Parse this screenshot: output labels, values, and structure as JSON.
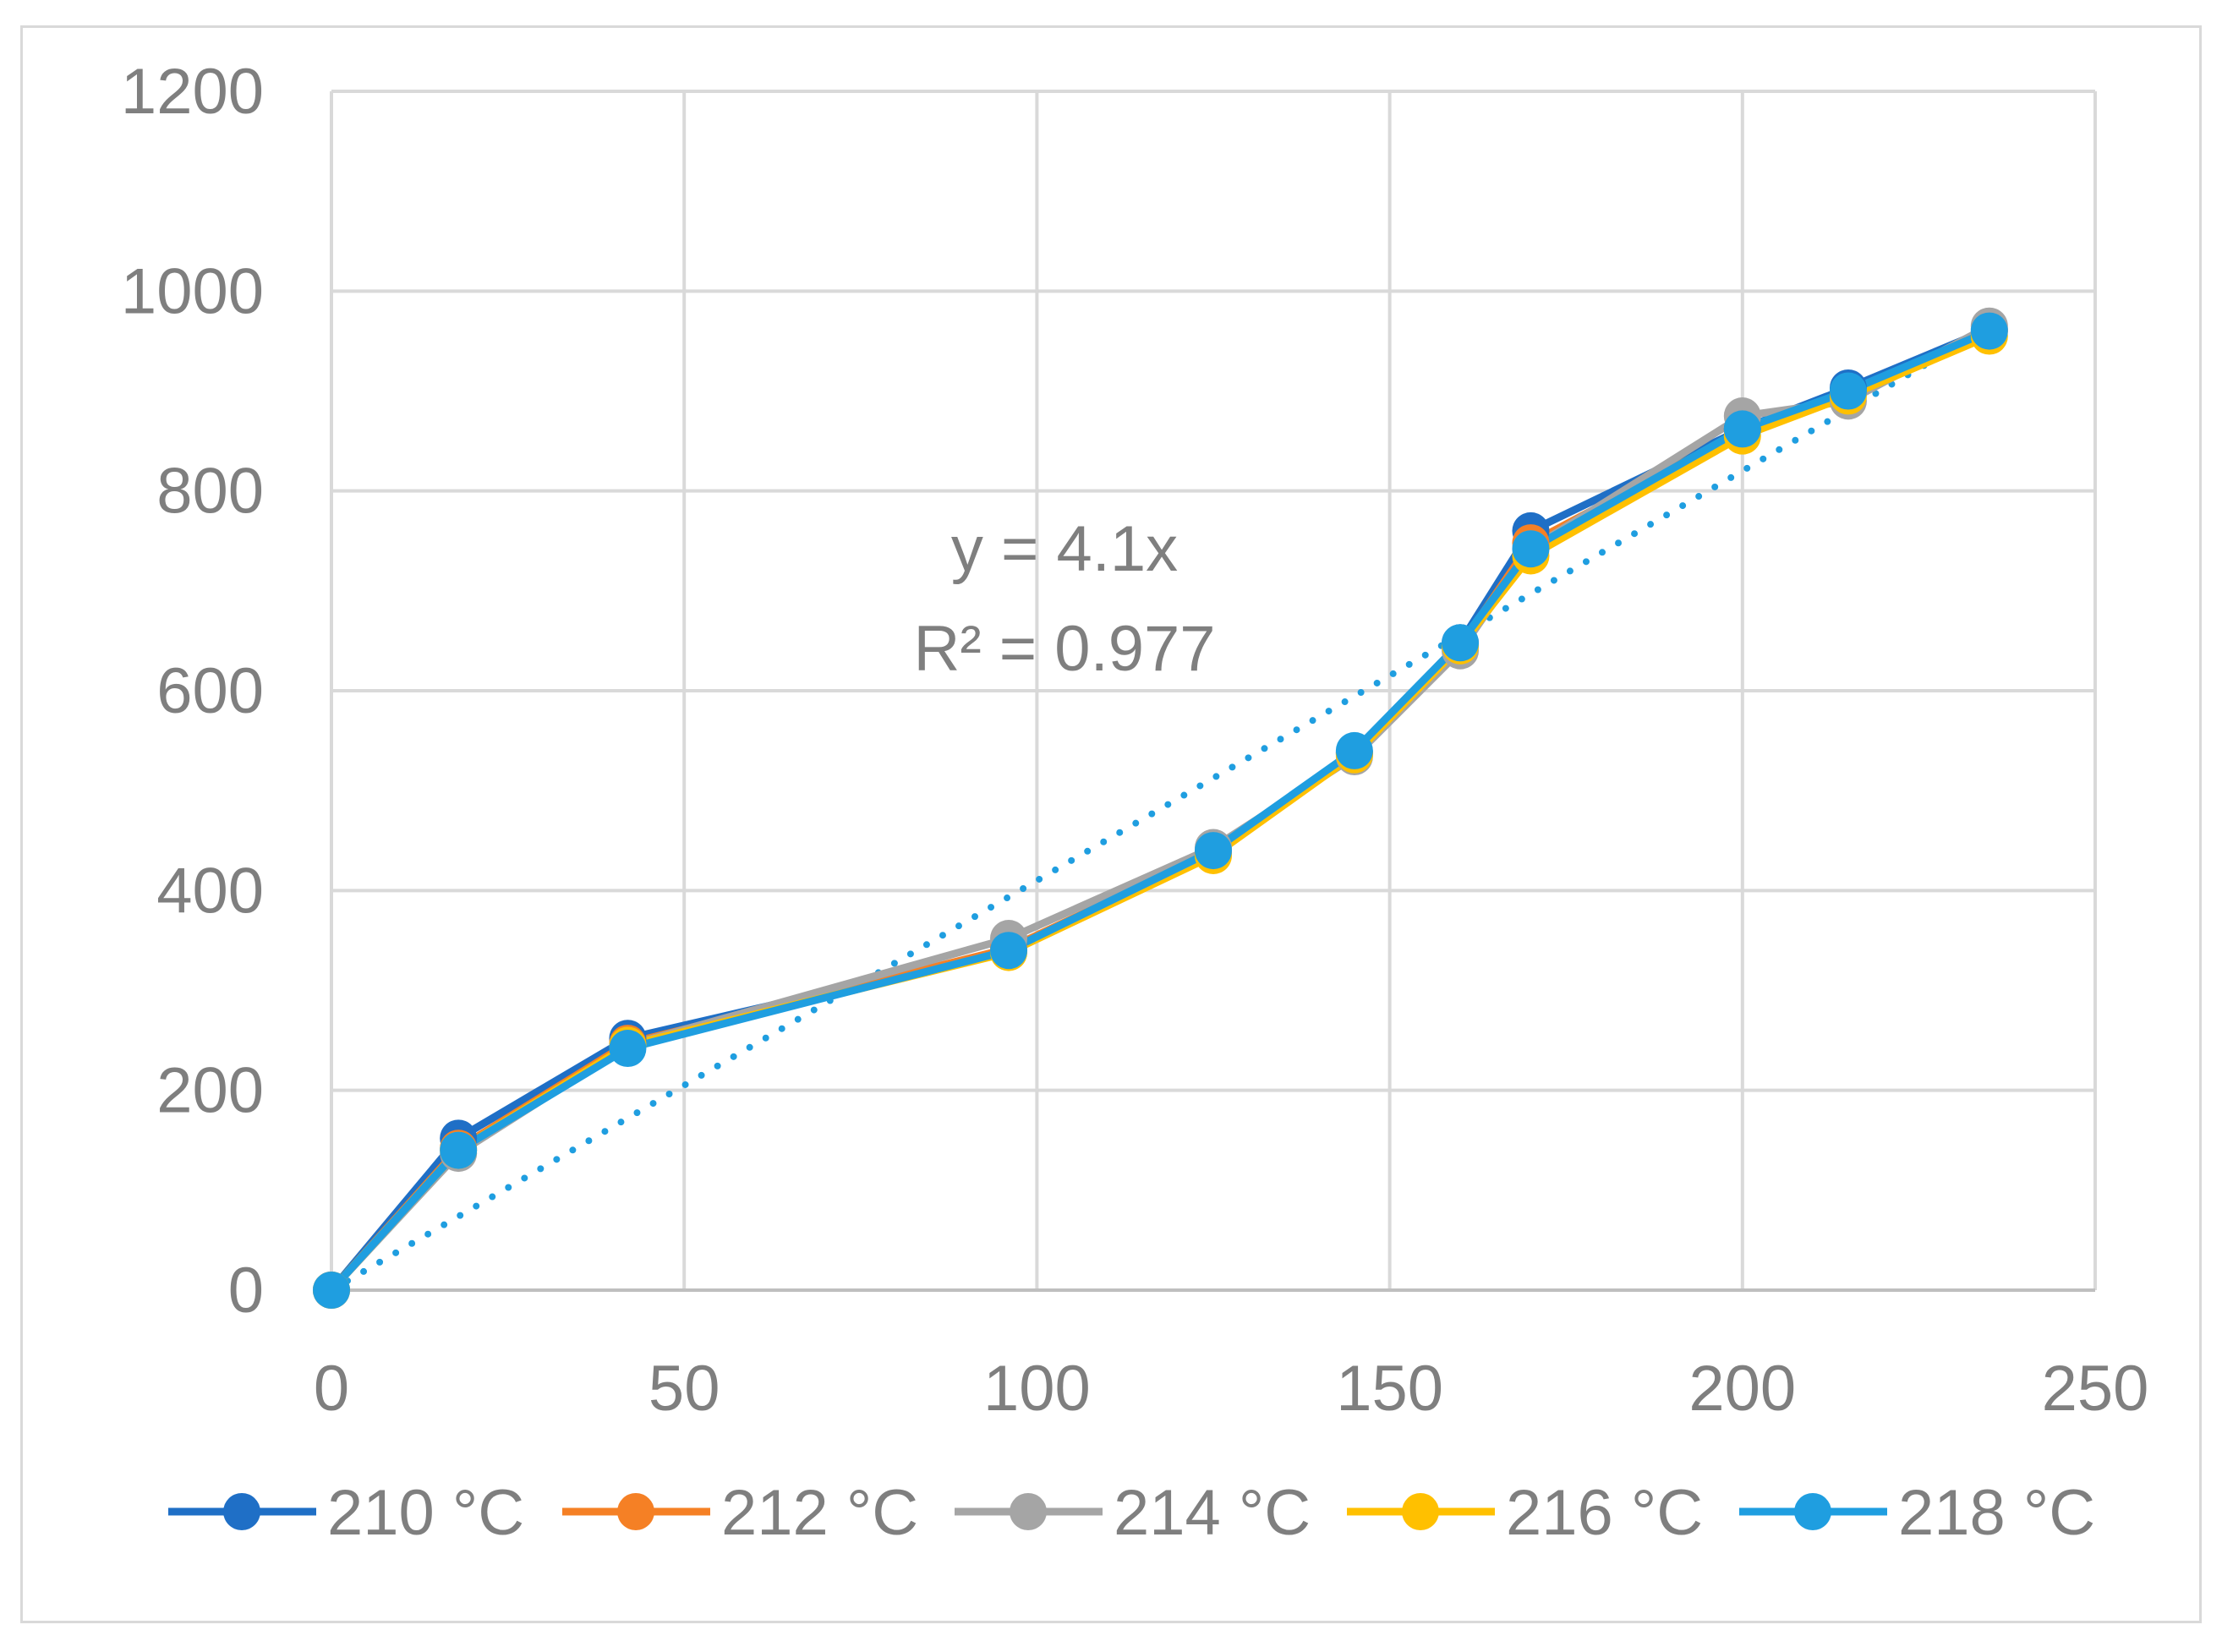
{
  "chart_data": {
    "type": "line",
    "title": "",
    "xlabel": "",
    "ylabel": "",
    "xlim": [
      0,
      250
    ],
    "ylim": [
      0,
      1200
    ],
    "x_ticks": [
      0,
      50,
      100,
      150,
      200,
      250
    ],
    "y_ticks": [
      0,
      200,
      400,
      600,
      800,
      1000,
      1200
    ],
    "x_tick_labels": [
      "0",
      "50",
      "100",
      "150",
      "200",
      "250"
    ],
    "y_tick_labels": [
      "0",
      "200",
      "400",
      "600",
      "800",
      "1000",
      "1200"
    ],
    "grid": true,
    "legend_position": "bottom",
    "x": [
      0,
      18,
      42,
      96,
      125,
      145,
      160,
      170,
      200,
      215,
      235
    ],
    "series": [
      {
        "name": "210 °C",
        "color": "#1f6fc6",
        "values": [
          0,
          152,
          252,
          340,
          440,
          538,
          648,
          760,
          862,
          903,
          962
        ]
      },
      {
        "name": "212 °C",
        "color": "#f58025",
        "values": [
          0,
          142,
          247,
          342,
          438,
          537,
          645,
          748,
          860,
          898,
          960
        ]
      },
      {
        "name": "214 °C",
        "color": "#a5a5a5",
        "values": [
          0,
          137,
          245,
          352,
          443,
          534,
          640,
          742,
          875,
          890,
          965
        ]
      },
      {
        "name": "216 °C",
        "color": "#ffc000",
        "values": [
          0,
          140,
          245,
          338,
          435,
          536,
          645,
          735,
          855,
          895,
          955
        ]
      },
      {
        "name": "218 °C",
        "color": "#1f9ee0",
        "values": [
          0,
          140,
          242,
          340,
          440,
          540,
          648,
          742,
          862,
          900,
          960
        ]
      }
    ],
    "trendline": {
      "series": "218 °C",
      "type": "linear",
      "slope": 4.1,
      "intercept": 0,
      "color": "#1f9ee0",
      "style": "dotted",
      "x_range": [
        0,
        235
      ]
    },
    "annotations": {
      "equation": "y = 4.1x",
      "r_squared": "R² = 0.977"
    }
  }
}
